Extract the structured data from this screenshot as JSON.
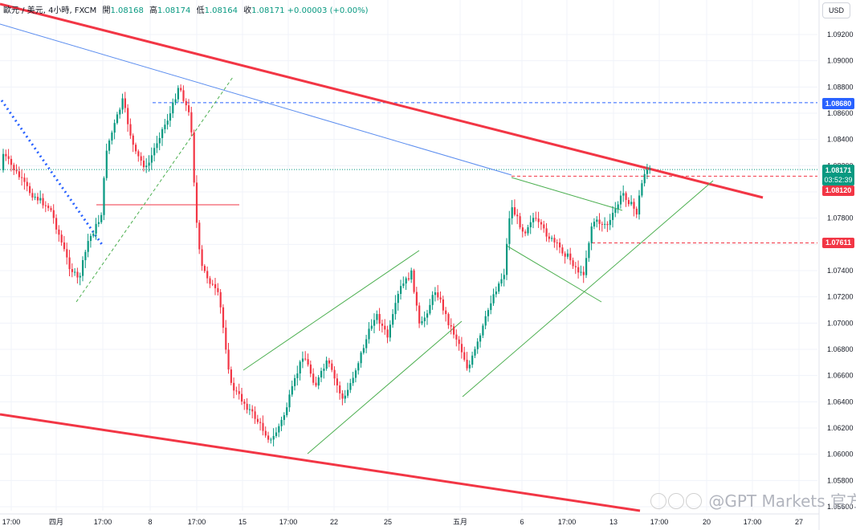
{
  "header": {
    "symbol": "歐元 / 美元, 4小時, FXCM",
    "open_label": "開",
    "open": "1.08168",
    "high_label": "高",
    "high": "1.08174",
    "low_label": "低",
    "low": "1.08164",
    "close_label": "收",
    "close": "1.08171",
    "change": "+0.00003 (+0.00%)"
  },
  "currency_button": "USD",
  "price_tags": {
    "last_price": "1.08171",
    "countdown": "03:52:39",
    "level_blue": "1.08680",
    "level_red_upper": "1.08120",
    "level_red_lower": "1.07611"
  },
  "colors": {
    "up": "#089981",
    "down": "#f23645",
    "trendline_red": "#f23645",
    "trendline_blue": "#2962ff",
    "channel_green": "#4caf50",
    "blue_tag": "#2962ff",
    "red_tag": "#f23645"
  },
  "watermark": {
    "text": "@GPT Markets 官方"
  },
  "chart_data": {
    "type": "candlestick",
    "y_axis": {
      "ticks": [
        "1.09200",
        "1.09000",
        "1.08800",
        "1.08600",
        "1.08400",
        "1.08200",
        "1.08000",
        "1.07800",
        "1.07600",
        "1.07400",
        "1.07200",
        "1.07000",
        "1.06800",
        "1.06600",
        "1.06400",
        "1.06200",
        "1.06000",
        "1.05800",
        "1.05600"
      ],
      "ylim": [
        1.0556,
        1.093
      ]
    },
    "x_axis": {
      "ticks": [
        "17:00",
        "四月",
        "17:00",
        "8",
        "17:00",
        "15",
        "17:00",
        "22",
        "25",
        "五月",
        "6",
        "17:00",
        "13",
        "17:00",
        "20",
        "17:00",
        "27"
      ]
    },
    "last_price": 1.08171,
    "horizontal_levels": [
      {
        "price": 1.0868,
        "style": "dashed",
        "color": "blue"
      },
      {
        "price": 1.0812,
        "style": "dashed",
        "color": "red"
      },
      {
        "price": 1.07611,
        "style": "dashed",
        "color": "red"
      },
      {
        "price": 1.079,
        "style": "solid",
        "color": "red"
      }
    ],
    "trendlines": [
      {
        "name": "upper-red",
        "from": [
          1.093,
          0
        ],
        "to": [
          1.0798,
          1
        ],
        "color": "red"
      },
      {
        "name": "lower-red",
        "from": [
          1.0628,
          0
        ],
        "to": [
          1.056,
          1
        ],
        "color": "red"
      }
    ]
  }
}
